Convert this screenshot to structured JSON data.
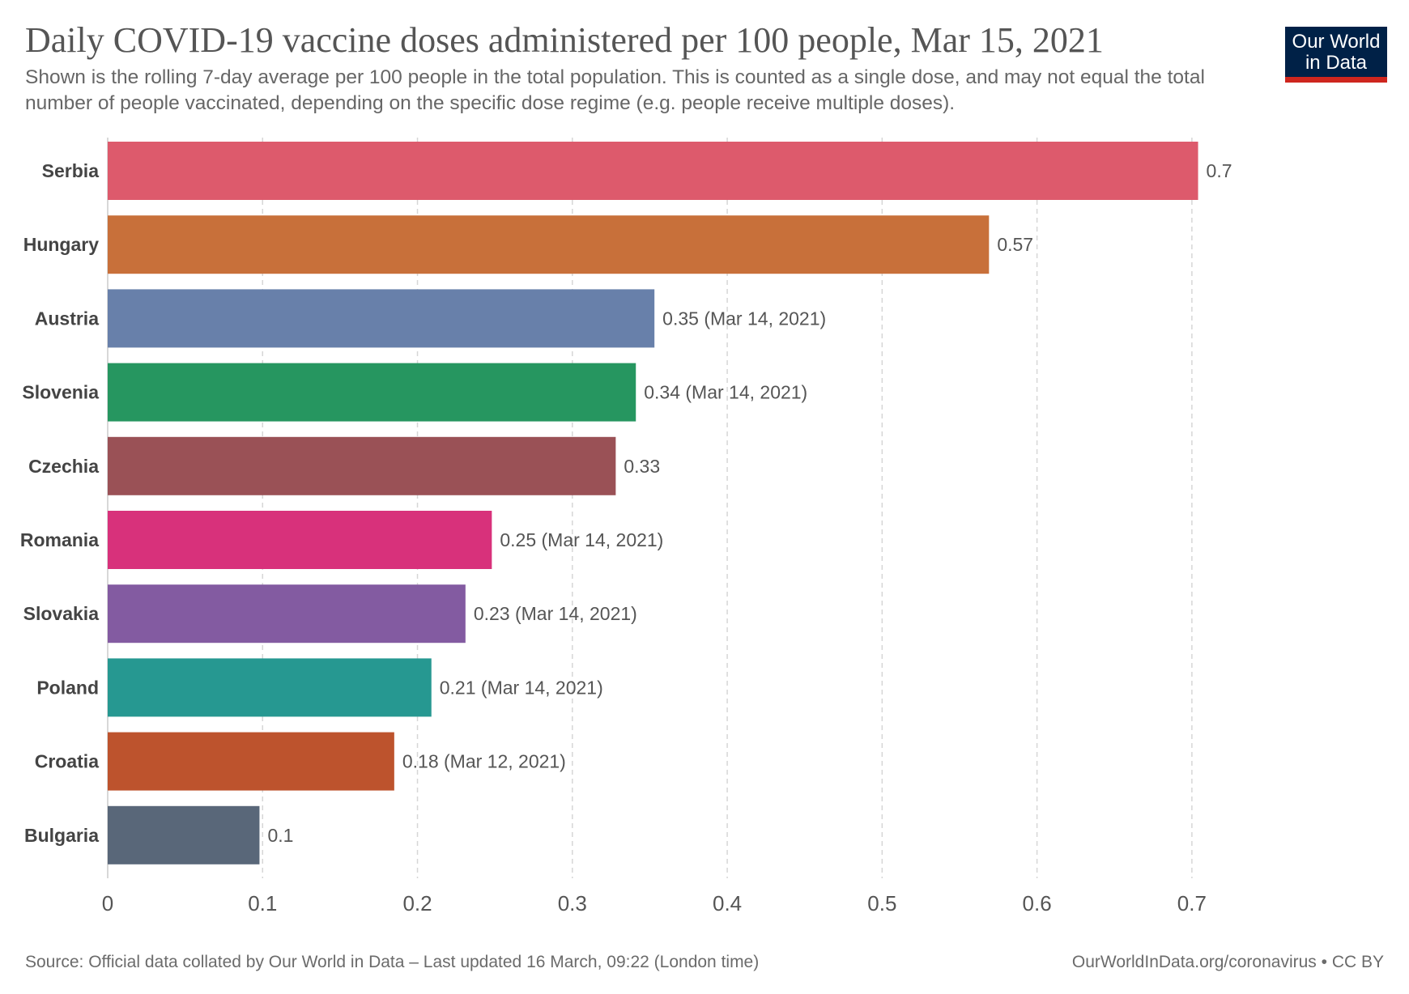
{
  "header": {
    "title": "Daily COVID-19 vaccine doses administered per 100 people, Mar 15, 2021",
    "subtitle": "Shown is the rolling 7-day average per 100 people in the total population. This is counted as a single dose, and may not equal the total number of people vaccinated, depending on the specific dose regime (e.g. people receive multiple doses).",
    "logo_line1": "Our World",
    "logo_line2": "in Data"
  },
  "footer": {
    "source": "Source: Official data collated by Our World in Data – Last updated 16 March, 09:22 (London time)",
    "credit": "OurWorldInData.org/coronavirus • CC BY"
  },
  "chart_data": {
    "type": "bar",
    "orientation": "horizontal",
    "title": "Daily COVID-19 vaccine doses administered per 100 people, Mar 15, 2021",
    "xlabel": "",
    "ylabel": "",
    "xlim": [
      0,
      0.7
    ],
    "xticks": [
      "0",
      "0.1",
      "0.2",
      "0.3",
      "0.4",
      "0.5",
      "0.6",
      "0.7"
    ],
    "grid": true,
    "categories": [
      "Serbia",
      "Hungary",
      "Austria",
      "Slovenia",
      "Czechia",
      "Romania",
      "Slovakia",
      "Poland",
      "Croatia",
      "Bulgaria"
    ],
    "values": [
      0.704,
      0.569,
      0.353,
      0.341,
      0.328,
      0.248,
      0.231,
      0.209,
      0.185,
      0.098
    ],
    "labels": [
      "0.7",
      "0.57",
      "0.35 (Mar 14, 2021)",
      "0.34 (Mar 14, 2021)",
      "0.33",
      "0.25 (Mar 14, 2021)",
      "0.23 (Mar 14, 2021)",
      "0.21 (Mar 14, 2021)",
      "0.18 (Mar 12, 2021)",
      "0.1"
    ],
    "colors": [
      "#dd5a6c",
      "#c8703a",
      "#6880aa",
      "#269660",
      "#9a5156",
      "#d8317b",
      "#835ba1",
      "#269891",
      "#bd532d",
      "#596779"
    ]
  }
}
